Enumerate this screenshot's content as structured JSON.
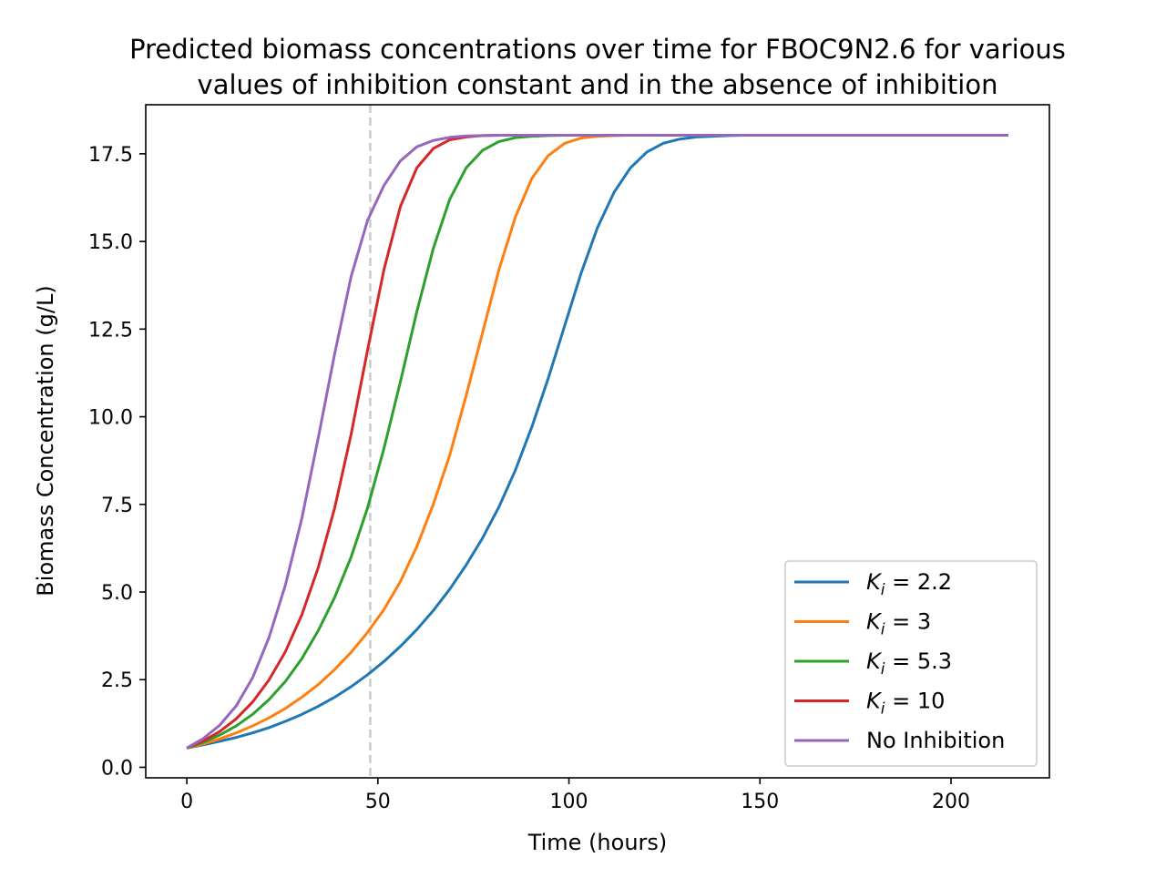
{
  "chart_data": {
    "type": "line",
    "title_lines": [
      "Predicted biomass concentrations over time for FBOC9N2.6 for various",
      "values of inhibition constant and in the absence of inhibition"
    ],
    "xlabel": "Time (hours)",
    "ylabel": "Biomass Concentration (g/L)",
    "xlim": [
      -10.75,
      225.75
    ],
    "ylim": [
      -0.3,
      18.9
    ],
    "xticks": [
      0,
      50,
      100,
      150,
      200
    ],
    "xtick_labels": [
      "0",
      "50",
      "100",
      "150",
      "200"
    ],
    "yticks": [
      0,
      2.5,
      5,
      7.5,
      10,
      12.5,
      15,
      17.5
    ],
    "ytick_labels": [
      "0.0",
      "2.5",
      "5.0",
      "7.5",
      "10.0",
      "12.5",
      "15.0",
      "17.5"
    ],
    "grid": false,
    "legend_position": "lower right",
    "vline": {
      "x": 48,
      "color": "#cccccc",
      "style": "dashed"
    },
    "x": [
      0,
      4.3,
      8.6,
      12.9,
      17.2,
      21.5,
      25.8,
      30.1,
      34.4,
      38.7,
      43,
      47.3,
      51.6,
      55.9,
      60.2,
      64.5,
      68.8,
      73.1,
      77.4,
      81.7,
      86,
      90.3,
      94.6,
      98.9,
      103.2,
      107.5,
      111.8,
      116.1,
      120.4,
      124.7,
      129,
      133.3,
      137.6,
      141.9,
      146.2,
      150.5,
      154.8,
      159.1,
      163.4,
      167.7,
      172,
      176.3,
      180.6,
      184.9,
      189.2,
      193.5,
      197.8,
      202.1,
      206.4,
      210.7,
      215
    ],
    "series": [
      {
        "name": "K_i = 2.2",
        "legend_symbol": "K",
        "legend_sub": "i",
        "legend_rest": " = 2.2",
        "color": "#1f77b4",
        "values": [
          0.55,
          0.64,
          0.74,
          0.85,
          0.98,
          1.13,
          1.31,
          1.51,
          1.74,
          2.0,
          2.3,
          2.64,
          3.02,
          3.45,
          3.93,
          4.47,
          5.08,
          5.77,
          6.54,
          7.43,
          8.48,
          9.71,
          11.1,
          12.6,
          14.1,
          15.4,
          16.4,
          17.1,
          17.55,
          17.8,
          17.92,
          17.98,
          18.0,
          18.02,
          18.03,
          18.03,
          18.03,
          18.03,
          18.03,
          18.03,
          18.03,
          18.03,
          18.03,
          18.03,
          18.03,
          18.03,
          18.03,
          18.03,
          18.03,
          18.03,
          18.03
        ]
      },
      {
        "name": "K_i = 3",
        "legend_symbol": "K",
        "legend_sub": "i",
        "legend_rest": " = 3",
        "color": "#ff7f0e",
        "values": [
          0.55,
          0.67,
          0.81,
          0.98,
          1.18,
          1.41,
          1.68,
          2.0,
          2.36,
          2.79,
          3.28,
          3.85,
          4.5,
          5.3,
          6.3,
          7.5,
          8.9,
          10.6,
          12.4,
          14.2,
          15.7,
          16.8,
          17.45,
          17.8,
          17.95,
          18.0,
          18.02,
          18.03,
          18.03,
          18.03,
          18.03,
          18.03,
          18.03,
          18.03,
          18.03,
          18.03,
          18.03,
          18.03,
          18.03,
          18.03,
          18.03,
          18.03,
          18.03,
          18.03,
          18.03,
          18.03,
          18.03,
          18.03,
          18.03,
          18.03,
          18.03
        ]
      },
      {
        "name": "K_i = 5.3",
        "legend_symbol": "K",
        "legend_sub": "i",
        "legend_rest": " = 5.3",
        "color": "#2ca02c",
        "values": [
          0.55,
          0.71,
          0.92,
          1.18,
          1.51,
          1.93,
          2.45,
          3.1,
          3.9,
          4.85,
          6.0,
          7.4,
          9.1,
          11.0,
          13.0,
          14.8,
          16.2,
          17.1,
          17.6,
          17.85,
          17.96,
          18.0,
          18.02,
          18.03,
          18.03,
          18.03,
          18.03,
          18.03,
          18.03,
          18.03,
          18.03,
          18.03,
          18.03,
          18.03,
          18.03,
          18.03,
          18.03,
          18.03,
          18.03,
          18.03,
          18.03,
          18.03,
          18.03,
          18.03,
          18.03,
          18.03,
          18.03,
          18.03,
          18.03,
          18.03,
          18.03
        ]
      },
      {
        "name": "K_i = 10",
        "legend_symbol": "K",
        "legend_sub": "i",
        "legend_rest": " = 10",
        "color": "#d62728",
        "values": [
          0.55,
          0.75,
          1.02,
          1.38,
          1.86,
          2.49,
          3.3,
          4.35,
          5.7,
          7.4,
          9.5,
          11.9,
          14.2,
          16.0,
          17.1,
          17.65,
          17.9,
          17.98,
          18.02,
          18.03,
          18.03,
          18.03,
          18.03,
          18.03,
          18.03,
          18.03,
          18.03,
          18.03,
          18.03,
          18.03,
          18.03,
          18.03,
          18.03,
          18.03,
          18.03,
          18.03,
          18.03,
          18.03,
          18.03,
          18.03,
          18.03,
          18.03,
          18.03,
          18.03,
          18.03,
          18.03,
          18.03,
          18.03,
          18.03,
          18.03,
          18.03
        ]
      },
      {
        "name": "No Inhibition",
        "legend_symbol": "",
        "legend_sub": "",
        "legend_rest": "No Inhibition",
        "color": "#9467bd",
        "values": [
          0.55,
          0.82,
          1.2,
          1.75,
          2.55,
          3.7,
          5.2,
          7.1,
          9.4,
          11.8,
          14.0,
          15.6,
          16.6,
          17.3,
          17.7,
          17.88,
          17.97,
          18.01,
          18.02,
          18.03,
          18.03,
          18.03,
          18.03,
          18.03,
          18.03,
          18.03,
          18.03,
          18.03,
          18.03,
          18.03,
          18.03,
          18.03,
          18.03,
          18.03,
          18.03,
          18.03,
          18.03,
          18.03,
          18.03,
          18.03,
          18.03,
          18.03,
          18.03,
          18.03,
          18.03,
          18.03,
          18.03,
          18.03,
          18.03,
          18.03,
          18.03
        ]
      }
    ]
  }
}
